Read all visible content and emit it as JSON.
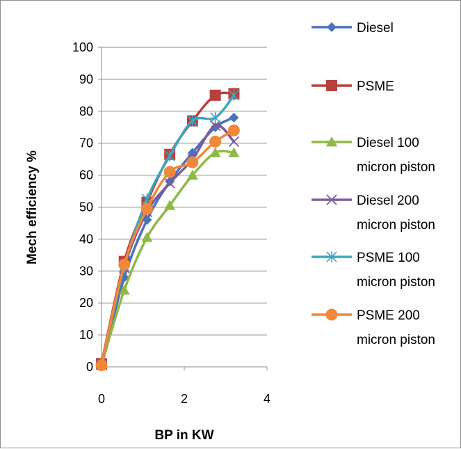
{
  "chart_data": {
    "type": "line",
    "xlabel": "BP in KW",
    "ylabel": "Mech efficiency %",
    "xlim": [
      0,
      4
    ],
    "ylim": [
      0,
      100
    ],
    "x_ticks": [
      "0",
      "2",
      "4"
    ],
    "y_ticks": [
      "0",
      "10",
      "20",
      "30",
      "40",
      "50",
      "60",
      "70",
      "80",
      "90",
      "100"
    ],
    "grid": "horizontal",
    "legend_position": "right",
    "series": [
      {
        "name": "Diesel",
        "legend_lines": [
          "Diesel"
        ],
        "color": "#4a73b8",
        "marker": "diamond",
        "x": [
          0,
          0.55,
          1.1,
          1.65,
          2.2,
          2.75,
          3.2
        ],
        "y": [
          0.5,
          28,
          46,
          58,
          67,
          75,
          78
        ]
      },
      {
        "name": "PSME",
        "legend_lines": [
          "PSME"
        ],
        "color": "#b8413d",
        "marker": "square",
        "x": [
          0,
          0.55,
          1.1,
          1.65,
          2.2,
          2.75,
          3.2
        ],
        "y": [
          1,
          33,
          51.5,
          66.5,
          77,
          85,
          85.5
        ]
      },
      {
        "name": "Diesel 100 micron piston",
        "legend_lines": [
          "Diesel 100",
          "micron piston"
        ],
        "color": "#8fb944",
        "marker": "triangle",
        "x": [
          0,
          0.55,
          1.1,
          1.65,
          2.2,
          2.75,
          3.2
        ],
        "y": [
          0.5,
          24,
          40.5,
          50.5,
          60,
          67,
          67
        ]
      },
      {
        "name": "Diesel 200 micron piston",
        "legend_lines": [
          "Diesel 200",
          "micron piston"
        ],
        "color": "#7a5ba0",
        "marker": "x",
        "x": [
          0,
          0.55,
          1.1,
          1.65,
          2.2,
          2.75,
          3.2
        ],
        "y": [
          0.5,
          31,
          48.5,
          57.5,
          65,
          75.5,
          70.5
        ]
      },
      {
        "name": "PSME 100 micron piston",
        "legend_lines": [
          "PSME 100",
          "micron piston"
        ],
        "color": "#3ea6c1",
        "marker": "asterisk",
        "x": [
          0,
          0.55,
          1.1,
          1.65,
          2.2,
          2.75,
          3.2
        ],
        "y": [
          0.5,
          31.5,
          52.5,
          66,
          77,
          78,
          85
        ]
      },
      {
        "name": "PSME 200 micron piston",
        "legend_lines": [
          "PSME 200",
          "micron piston"
        ],
        "color": "#f0883a",
        "marker": "circle",
        "x": [
          0,
          0.55,
          1.1,
          1.65,
          2.2,
          2.75,
          3.2
        ],
        "y": [
          0.5,
          32,
          49.5,
          61,
          64,
          70.5,
          74
        ]
      }
    ]
  }
}
